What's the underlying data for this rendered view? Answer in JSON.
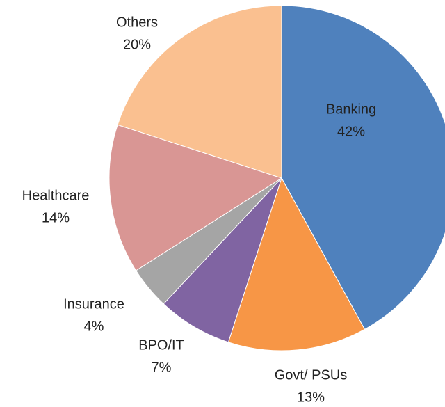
{
  "chart_data": {
    "type": "pie",
    "categories": [
      "Banking",
      "Govt/ PSUs",
      "BPO/IT",
      "Insurance",
      "Healthcare",
      "Others"
    ],
    "values": [
      42,
      13,
      7,
      4,
      14,
      20
    ],
    "value_labels": [
      "42%",
      "13%",
      "7%",
      "4%",
      "14%",
      "20%"
    ],
    "colors": [
      "#4f81bd",
      "#f79646",
      "#8064a2",
      "#a5a5a5",
      "#d99694",
      "#fac090"
    ]
  }
}
